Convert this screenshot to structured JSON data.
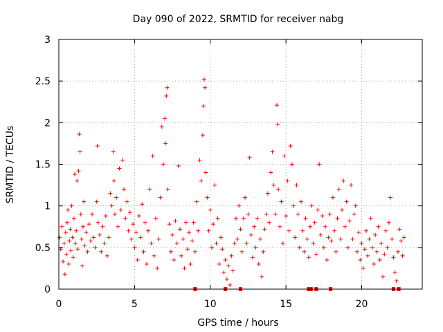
{
  "chart_data": {
    "type": "scatter",
    "title": "Day 090 of 2022, SRMTID for receiver nabg",
    "xlabel": "GPS time / hours",
    "ylabel": "SRMTID / TECUs",
    "xlim": [
      0,
      24
    ],
    "ylim": [
      0,
      3
    ],
    "xticks": [
      0,
      5,
      10,
      15,
      20
    ],
    "xtick_labels": [
      "0",
      "5",
      "10",
      "15",
      "20"
    ],
    "yticks": [
      0,
      0.5,
      1,
      1.5,
      2,
      2.5,
      3
    ],
    "ytick_labels": [
      "0",
      "0.5",
      "1",
      "1.5",
      "2",
      "2.5",
      "3"
    ],
    "grid": true,
    "marker": "+",
    "color": "#ff0000",
    "series": [
      {
        "name": "SRMTID",
        "points": [
          [
            0.05,
            0.62
          ],
          [
            0.12,
            0.48
          ],
          [
            0.2,
            0.75
          ],
          [
            0.28,
            0.33
          ],
          [
            0.35,
            0.55
          ],
          [
            0.4,
            0.18
          ],
          [
            0.45,
            0.68
          ],
          [
            0.5,
            0.42
          ],
          [
            0.55,
            0.8
          ],
          [
            0.6,
            0.95
          ],
          [
            0.65,
            0.3
          ],
          [
            0.7,
            0.58
          ],
          [
            0.75,
            0.72
          ],
          [
            0.8,
            0.46
          ],
          [
            0.85,
            1.0
          ],
          [
            0.9,
            0.62
          ],
          [
            0.95,
            0.38
          ],
          [
            1.0,
            0.85
          ],
          [
            1.05,
            1.38
          ],
          [
            1.1,
            0.55
          ],
          [
            1.15,
            0.7
          ],
          [
            1.2,
            1.3
          ],
          [
            1.25,
            0.48
          ],
          [
            1.3,
            1.42
          ],
          [
            1.35,
            1.86
          ],
          [
            1.4,
            1.65
          ],
          [
            1.45,
            0.9
          ],
          [
            1.5,
            0.6
          ],
          [
            1.55,
            0.28
          ],
          [
            1.6,
            0.75
          ],
          [
            1.65,
            1.05
          ],
          [
            1.7,
            0.52
          ],
          [
            1.8,
            0.68
          ],
          [
            1.9,
            0.45
          ],
          [
            2.0,
            0.78
          ],
          [
            2.1,
            0.58
          ],
          [
            2.2,
            0.9
          ],
          [
            2.3,
            0.62
          ],
          [
            2.4,
            0.5
          ],
          [
            2.5,
            1.05
          ],
          [
            2.55,
            1.72
          ],
          [
            2.6,
            0.8
          ],
          [
            2.7,
            0.65
          ],
          [
            2.8,
            0.45
          ],
          [
            2.9,
            0.75
          ],
          [
            3.0,
            0.55
          ],
          [
            3.1,
            0.88
          ],
          [
            3.2,
            0.4
          ],
          [
            3.3,
            0.62
          ],
          [
            3.4,
            1.15
          ],
          [
            3.5,
            1.0
          ],
          [
            3.6,
            1.65
          ],
          [
            3.65,
            1.3
          ],
          [
            3.7,
            0.9
          ],
          [
            3.8,
            1.1
          ],
          [
            3.9,
            0.75
          ],
          [
            4.0,
            1.45
          ],
          [
            4.1,
            0.95
          ],
          [
            4.2,
            1.55
          ],
          [
            4.3,
            1.2
          ],
          [
            4.4,
            0.85
          ],
          [
            4.5,
            1.05
          ],
          [
            4.6,
            0.7
          ],
          [
            4.7,
            0.92
          ],
          [
            4.8,
            0.6
          ],
          [
            4.9,
            0.78
          ],
          [
            5.0,
            0.5
          ],
          [
            5.1,
            0.68
          ],
          [
            5.2,
            0.35
          ],
          [
            5.3,
            0.88
          ],
          [
            5.4,
            0.62
          ],
          [
            5.5,
            1.02
          ],
          [
            5.6,
            0.45
          ],
          [
            5.7,
            0.8
          ],
          [
            5.8,
            0.3
          ],
          [
            5.9,
            0.7
          ],
          [
            6.0,
            1.2
          ],
          [
            6.1,
            0.55
          ],
          [
            6.2,
            1.6
          ],
          [
            6.3,
            0.4
          ],
          [
            6.4,
            0.85
          ],
          [
            6.5,
            0.25
          ],
          [
            6.6,
            0.6
          ],
          [
            6.7,
            1.1
          ],
          [
            6.8,
            1.95
          ],
          [
            6.9,
            1.5
          ],
          [
            7.0,
            2.05
          ],
          [
            7.05,
            1.75
          ],
          [
            7.1,
            2.32
          ],
          [
            7.15,
            2.42
          ],
          [
            7.2,
            1.2
          ],
          [
            7.3,
            0.78
          ],
          [
            7.4,
            0.45
          ],
          [
            7.5,
            0.65
          ],
          [
            7.6,
            0.35
          ],
          [
            7.7,
            0.82
          ],
          [
            7.8,
            0.55
          ],
          [
            7.9,
            1.48
          ],
          [
            8.0,
            0.72
          ],
          [
            8.1,
            0.4
          ],
          [
            8.2,
            0.6
          ],
          [
            8.3,
            0.25
          ],
          [
            8.4,
            0.8
          ],
          [
            8.5,
            0.48
          ],
          [
            8.6,
            0.68
          ],
          [
            8.7,
            0.3
          ],
          [
            8.8,
            0.58
          ],
          [
            8.9,
            0.8
          ],
          [
            9.0,
            0.45
          ],
          [
            9.1,
            1.05
          ],
          [
            9.2,
            0.7
          ],
          [
            9.3,
            1.55
          ],
          [
            9.4,
            1.3
          ],
          [
            9.5,
            1.85
          ],
          [
            9.55,
            2.2
          ],
          [
            9.6,
            2.52
          ],
          [
            9.65,
            2.42
          ],
          [
            9.7,
            1.4
          ],
          [
            9.8,
            1.1
          ],
          [
            9.9,
            0.7
          ],
          [
            10.0,
            0.95
          ],
          [
            10.1,
            0.5
          ],
          [
            10.2,
            0.78
          ],
          [
            10.3,
            1.25
          ],
          [
            10.4,
            0.55
          ],
          [
            10.5,
            0.85
          ],
          [
            10.6,
            0.3
          ],
          [
            10.7,
            0.62
          ],
          [
            10.8,
            0.48
          ],
          [
            10.9,
            0.2
          ],
          [
            11.0,
            0.35
          ],
          [
            11.1,
            0.12
          ],
          [
            11.2,
            0.28
          ],
          [
            11.3,
            0.05
          ],
          [
            11.4,
            0.4
          ],
          [
            11.5,
            0.22
          ],
          [
            11.6,
            0.55
          ],
          [
            11.7,
            0.85
          ],
          [
            11.8,
            0.6
          ],
          [
            11.9,
            1.0
          ],
          [
            12.0,
            0.72
          ],
          [
            12.1,
            0.45
          ],
          [
            12.2,
            0.85
          ],
          [
            12.3,
            1.1
          ],
          [
            12.4,
            0.55
          ],
          [
            12.5,
            0.9
          ],
          [
            12.6,
            1.58
          ],
          [
            12.7,
            0.65
          ],
          [
            12.8,
            0.38
          ],
          [
            12.9,
            0.75
          ],
          [
            13.0,
            0.5
          ],
          [
            13.1,
            0.85
          ],
          [
            13.2,
            0.3
          ],
          [
            13.3,
            0.6
          ],
          [
            13.4,
            0.15
          ],
          [
            13.5,
            0.45
          ],
          [
            13.6,
            0.72
          ],
          [
            13.7,
            0.9
          ],
          [
            13.8,
            1.15
          ],
          [
            13.9,
            0.8
          ],
          [
            14.0,
            1.4
          ],
          [
            14.1,
            1.65
          ],
          [
            14.2,
            1.25
          ],
          [
            14.3,
            0.9
          ],
          [
            14.4,
            2.21
          ],
          [
            14.45,
            1.98
          ],
          [
            14.5,
            1.2
          ],
          [
            14.6,
            0.75
          ],
          [
            14.7,
            1.05
          ],
          [
            14.8,
            0.55
          ],
          [
            14.9,
            1.6
          ],
          [
            15.0,
            0.88
          ],
          [
            15.1,
            1.3
          ],
          [
            15.2,
            0.7
          ],
          [
            15.3,
            1.72
          ],
          [
            15.4,
            1.5
          ],
          [
            15.5,
            1.0
          ],
          [
            15.6,
            0.62
          ],
          [
            15.7,
            1.25
          ],
          [
            15.8,
            0.9
          ],
          [
            15.9,
            0.5
          ],
          [
            16.0,
            1.05
          ],
          [
            16.1,
            0.7
          ],
          [
            16.2,
            0.45
          ],
          [
            16.3,
            0.85
          ],
          [
            16.4,
            0.6
          ],
          [
            16.5,
            0.38
          ],
          [
            16.6,
            0.75
          ],
          [
            16.7,
            1.0
          ],
          [
            16.8,
            0.55
          ],
          [
            16.9,
            0.8
          ],
          [
            17.0,
            0.42
          ],
          [
            17.1,
            0.95
          ],
          [
            17.2,
            1.5
          ],
          [
            17.3,
            0.65
          ],
          [
            17.4,
            0.88
          ],
          [
            17.5,
            0.5
          ],
          [
            17.6,
            0.75
          ],
          [
            17.7,
            0.35
          ],
          [
            17.8,
            0.62
          ],
          [
            17.9,
            0.9
          ],
          [
            18.0,
            0.58
          ],
          [
            18.1,
            1.1
          ],
          [
            18.2,
            0.7
          ],
          [
            18.3,
            0.45
          ],
          [
            18.4,
            0.85
          ],
          [
            18.5,
            1.2
          ],
          [
            18.6,
            0.6
          ],
          [
            18.7,
            0.95
          ],
          [
            18.8,
            1.3
          ],
          [
            18.9,
            0.75
          ],
          [
            19.0,
            1.05
          ],
          [
            19.1,
            0.5
          ],
          [
            19.2,
            0.82
          ],
          [
            19.3,
            1.25
          ],
          [
            19.4,
            0.6
          ],
          [
            19.5,
            0.9
          ],
          [
            19.6,
            1.0
          ],
          [
            19.7,
            0.45
          ],
          [
            19.8,
            0.68
          ],
          [
            19.9,
            0.35
          ],
          [
            20.0,
            0.55
          ],
          [
            20.1,
            0.25
          ],
          [
            20.2,
            0.48
          ],
          [
            20.3,
            0.7
          ],
          [
            20.4,
            0.4
          ],
          [
            20.5,
            0.6
          ],
          [
            20.6,
            0.85
          ],
          [
            20.7,
            0.5
          ],
          [
            20.8,
            0.3
          ],
          [
            20.9,
            0.65
          ],
          [
            21.0,
            0.45
          ],
          [
            21.1,
            0.75
          ],
          [
            21.2,
            0.35
          ],
          [
            21.3,
            0.55
          ],
          [
            21.4,
            0.15
          ],
          [
            21.5,
            0.42
          ],
          [
            21.6,
            0.7
          ],
          [
            21.7,
            0.5
          ],
          [
            21.8,
            0.8
          ],
          [
            21.9,
            1.1
          ],
          [
            22.0,
            0.6
          ],
          [
            22.1,
            0.38
          ],
          [
            22.2,
            0.2
          ],
          [
            22.3,
            0.1
          ],
          [
            22.4,
            0.45
          ],
          [
            22.5,
            0.72
          ],
          [
            22.6,
            0.58
          ],
          [
            22.7,
            0.4
          ],
          [
            22.8,
            0.62
          ]
        ]
      }
    ],
    "zero_markers": [
      9.0,
      11.0,
      12.0,
      16.5,
      16.65,
      17.0,
      17.95,
      22.1,
      22.45
    ]
  }
}
